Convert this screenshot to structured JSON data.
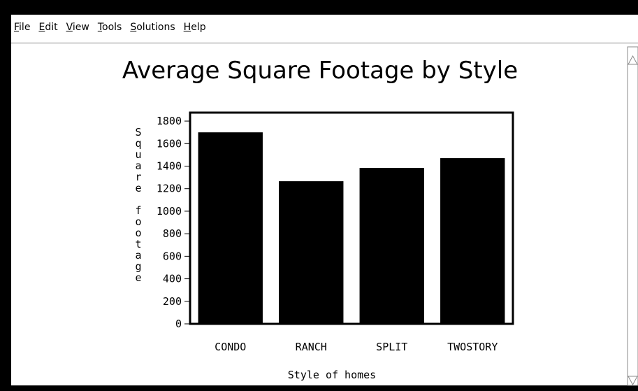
{
  "menu": [
    "File",
    "Edit",
    "View",
    "Tools",
    "Solutions",
    "Help"
  ],
  "chart_data": {
    "type": "bar",
    "title": "Average Square Footage by Style",
    "categories": [
      "CONDO",
      "RANCH",
      "SPLIT",
      "TWOSTORY"
    ],
    "values": [
      1700,
      1266,
      1384,
      1471
    ],
    "color": "#000000",
    "xlabel": "Style of homes",
    "ylabel": "Square footage",
    "ylim": [
      0,
      1875
    ],
    "yticks": [
      0,
      200,
      400,
      600,
      800,
      1000,
      1200,
      1400,
      1600,
      1800
    ],
    "grid": false
  }
}
